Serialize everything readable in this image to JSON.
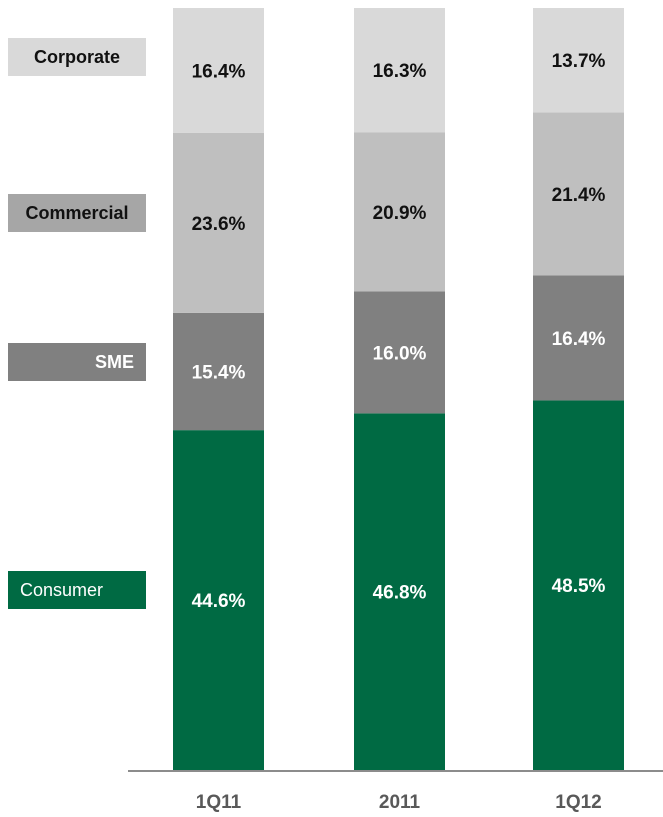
{
  "chart_data": {
    "type": "bar",
    "stacked": true,
    "categories": [
      "1Q11",
      "2011",
      "1Q12"
    ],
    "series": [
      {
        "name": "Consumer",
        "values": [
          44.6,
          46.8,
          48.5
        ],
        "labels": [
          "44.6%",
          "46.8%",
          "48.5%"
        ],
        "color": "#006A43",
        "label_color": "#ffffff"
      },
      {
        "name": "SME",
        "values": [
          15.4,
          16.0,
          16.4
        ],
        "labels": [
          "15.4%",
          "16.0%",
          "16.4%"
        ],
        "color": "#808080",
        "label_color": "#ffffff"
      },
      {
        "name": "Commercial",
        "values": [
          23.6,
          20.9,
          21.4
        ],
        "labels": [
          "23.6%",
          "20.9%",
          "21.4%"
        ],
        "color": "#BFBFBF",
        "label_color": "#111111"
      },
      {
        "name": "Corporate",
        "values": [
          16.4,
          16.3,
          13.7
        ],
        "labels": [
          "16.4%",
          "16.3%",
          "13.7%"
        ],
        "color": "#D9D9D9",
        "label_color": "#111111"
      }
    ],
    "ylim": [
      0,
      100
    ],
    "grid": false,
    "legend_placement": "left"
  },
  "legend": [
    {
      "label": "Corporate",
      "color": "#D9D9D9",
      "text_color": "#111111"
    },
    {
      "label": "Commercial",
      "color": "#A6A6A6",
      "text_color": "#111111"
    },
    {
      "label": "SME",
      "color": "#808080",
      "text_color": "#ffffff"
    },
    {
      "label": "Consumer",
      "color": "#006A43",
      "text_color": "#ffffff"
    }
  ],
  "colors": {
    "axis": "#8C8C8C",
    "category_label": "#595959"
  }
}
